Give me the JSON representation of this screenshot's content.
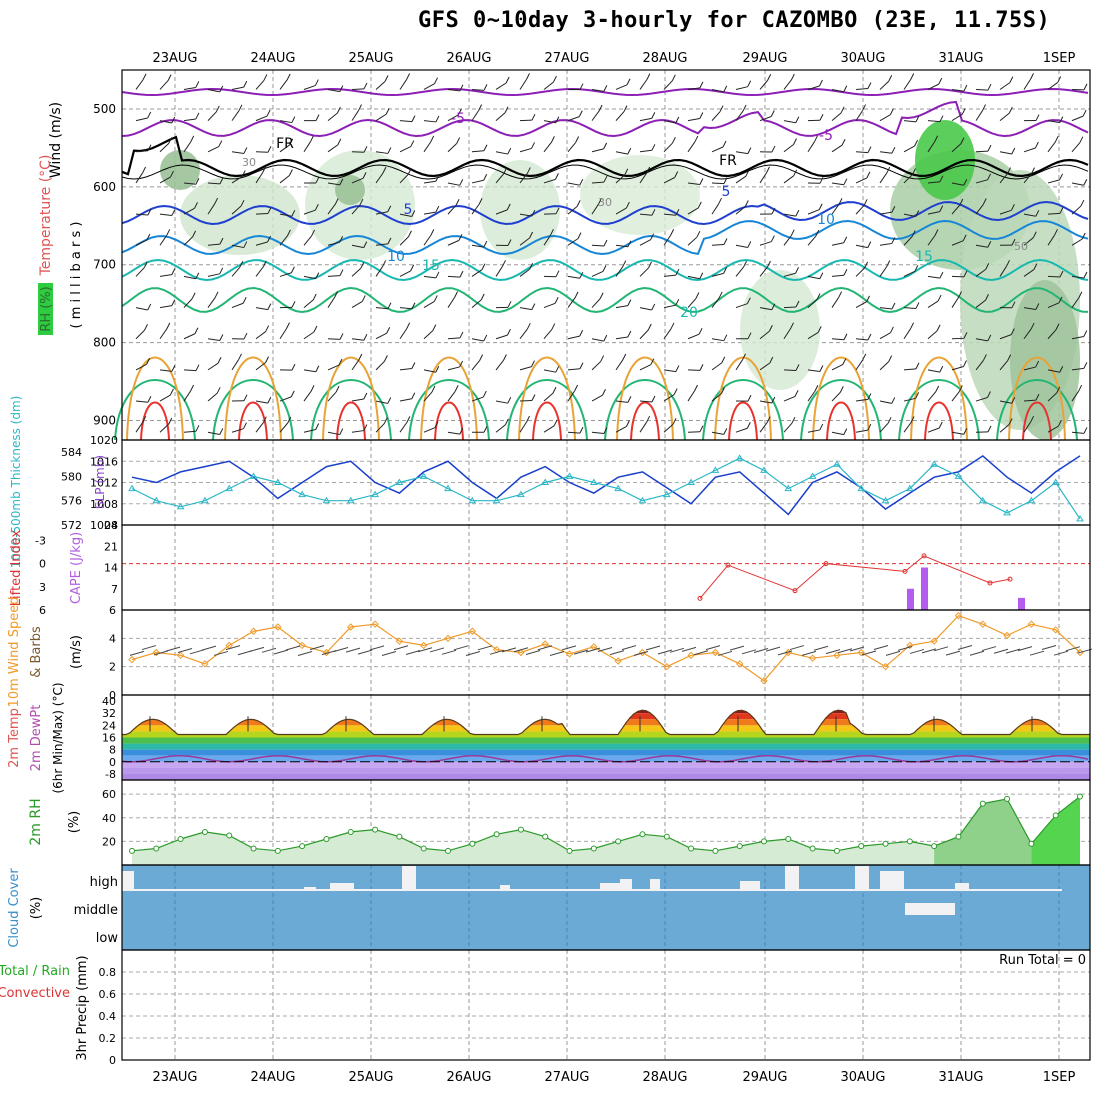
{
  "title": "GFS 0~10day 3-hourly for CAZOMBO (23E, 11.75S)",
  "colors": {
    "purple": "#8c1fb5",
    "black": "#000000",
    "blue1": "#1f3fcf",
    "blue2": "#1786d6",
    "teal": "#18b8b0",
    "green": "#22b573",
    "orange": "#e8a334",
    "red": "#e8322e",
    "rh_green": "#2ecc40",
    "cloud_blue": "#6aaad4",
    "slp_blue": "#1a3fcc",
    "thick_cyan": "#2bb7c8",
    "cape_purple": "#b45cf0",
    "li_red": "#e03030",
    "wind_orange": "#f09a28",
    "rh2m": "#2a9a2a"
  },
  "dates": [
    "23AUG",
    "24AUG",
    "25AUG",
    "26AUG",
    "27AUG",
    "28AUG",
    "29AUG",
    "30AUG",
    "31AUG",
    "1SEP"
  ],
  "panels": {
    "upper": {
      "labels": [
        "Wind (m/s)",
        "Temperature (°C)",
        "RH (%)",
        "( m i l l i b a r s )"
      ],
      "yticks": [
        "500",
        "600",
        "700",
        "800",
        "900"
      ],
      "contour_labels": [
        {
          "text": "-5",
          "series": "purple"
        },
        {
          "text": "-5",
          "series": "purple"
        },
        {
          "text": "FR",
          "series": "black"
        },
        {
          "text": "FR",
          "series": "black"
        },
        {
          "text": "5",
          "series": "blue1"
        },
        {
          "text": "5",
          "series": "blue1"
        },
        {
          "text": "10",
          "series": "blue2"
        },
        {
          "text": "10",
          "series": "blue2"
        },
        {
          "text": "15",
          "series": "teal"
        },
        {
          "text": "15",
          "series": "teal"
        },
        {
          "text": "20",
          "series": "teal"
        },
        {
          "text": "30",
          "series": "gray"
        },
        {
          "text": "30",
          "series": "gray"
        },
        {
          "text": "50",
          "series": "gray"
        }
      ]
    },
    "slp": {
      "labels": [
        "1000-500mb Thickness (dm)",
        "SLP (mb)"
      ],
      "left_ticks": [
        "584",
        "580",
        "576",
        "572"
      ],
      "right_ticks": [
        "1020",
        "1016",
        "1012",
        "1008",
        "1004"
      ]
    },
    "cape": {
      "labels": [
        "Lifted Index",
        "CAPE (J/kg)"
      ],
      "left_ticks": [
        "-3",
        "0",
        "3",
        "6"
      ],
      "right_ticks": [
        "28",
        "21",
        "14",
        "7"
      ]
    },
    "wind10": {
      "labels": [
        "10m Wind Speed",
        "& Barbs",
        "(m/s)"
      ],
      "yticks": [
        "6",
        "4",
        "2",
        "0"
      ]
    },
    "temp2m": {
      "labels": [
        "2m Temp",
        "2m DewPt",
        "(6hr Min/Max) (°C)"
      ],
      "yticks": [
        "40",
        "32",
        "24",
        "16",
        "8",
        "0",
        "-8"
      ]
    },
    "rh2m": {
      "labels": [
        "2m RH",
        "(%)"
      ],
      "yticks": [
        "60",
        "40",
        "20"
      ]
    },
    "cloud": {
      "labels": [
        "Cloud Cover",
        "(%)"
      ],
      "levels": [
        "high",
        "middle",
        "low"
      ]
    },
    "precip": {
      "labels": [
        "Total / Rain",
        "Convective",
        "3hr Precip (mm)"
      ],
      "yticks": [
        "0.8",
        "0.6",
        "0.4",
        "0.2",
        "0"
      ],
      "run_total": "Run Total = 0"
    }
  },
  "chart_data": [
    {
      "type": "line",
      "title": "SLP (mb)",
      "x": [
        "22AUG12",
        "22AUG18",
        "23AUG00",
        "23AUG06",
        "23AUG12",
        "23AUG18",
        "24AUG00",
        "24AUG06",
        "24AUG12",
        "24AUG18",
        "25AUG00",
        "25AUG06",
        "25AUG12",
        "25AUG18",
        "26AUG00",
        "26AUG06",
        "26AUG12",
        "26AUG18",
        "27AUG00",
        "27AUG06",
        "27AUG12",
        "27AUG18",
        "28AUG00",
        "28AUG06",
        "28AUG12",
        "28AUG18",
        "29AUG00",
        "29AUG06",
        "29AUG12",
        "29AUG18",
        "30AUG00",
        "30AUG06",
        "30AUG12",
        "30AUG18",
        "31AUG00",
        "31AUG06",
        "31AUG12",
        "31AUG18",
        "01SEP00",
        "01SEP06"
      ],
      "values": [
        1013,
        1012,
        1014,
        1015,
        1016,
        1013,
        1009,
        1012,
        1015,
        1016,
        1012,
        1010,
        1014,
        1016,
        1012,
        1009,
        1013,
        1015,
        1012,
        1010,
        1013,
        1014,
        1011,
        1008,
        1013,
        1014,
        1010,
        1006,
        1012,
        1014,
        1011,
        1007,
        1010,
        1013,
        1014,
        1017,
        1013,
        1010,
        1014,
        1017
      ],
      "ylim": [
        1004,
        1020
      ]
    },
    {
      "type": "line",
      "title": "1000-500mb Thickness (dm)",
      "values": [
        578,
        576,
        575,
        576,
        578,
        580,
        579,
        577,
        576,
        576,
        577,
        579,
        580,
        578,
        576,
        576,
        577,
        579,
        580,
        579,
        578,
        576,
        577,
        579,
        581,
        583,
        581,
        578,
        580,
        582,
        578,
        576,
        578,
        582,
        580,
        576,
        574,
        576,
        579,
        573
      ],
      "ylim": [
        572,
        586
      ]
    },
    {
      "type": "bar",
      "title": "CAPE (J/kg)",
      "categories": [
        "30AUG18",
        "30AUG21",
        "31AUG12"
      ],
      "values": [
        7,
        14,
        4
      ],
      "ylim": [
        0,
        28
      ]
    },
    {
      "type": "line",
      "title": "Lifted Index",
      "x": [
        "28AUG12",
        "28AUG15",
        "29AUG12",
        "29AUG15",
        "30AUG15",
        "30AUG18",
        "31AUG09",
        "31AUG12"
      ],
      "values": [
        4.5,
        0.2,
        3.5,
        0.0,
        1.0,
        -1.0,
        2.5,
        2.0
      ],
      "ylim": [
        6,
        -5
      ]
    },
    {
      "type": "line",
      "title": "10m Wind Speed (m/s)",
      "values": [
        2.5,
        3.0,
        2.8,
        2.2,
        3.5,
        4.5,
        4.8,
        3.5,
        3.0,
        4.8,
        5.0,
        3.8,
        3.5,
        4.0,
        4.5,
        3.2,
        3.0,
        3.6,
        2.9,
        3.4,
        2.4,
        3.0,
        2.0,
        2.8,
        3.0,
        2.2,
        1.0,
        3.0,
        2.6,
        2.8,
        3.0,
        2.0,
        3.5,
        3.8,
        5.6,
        5.0,
        4.2,
        5.0,
        4.6,
        3.0
      ],
      "ylim": [
        0,
        6
      ]
    },
    {
      "type": "line",
      "title": "2m RH (%)",
      "values": [
        12,
        14,
        22,
        28,
        25,
        14,
        12,
        16,
        22,
        28,
        30,
        24,
        14,
        12,
        18,
        26,
        30,
        24,
        12,
        14,
        20,
        26,
        24,
        14,
        12,
        16,
        20,
        22,
        14,
        12,
        16,
        18,
        20,
        16,
        24,
        52,
        56,
        18,
        42,
        58
      ],
      "ylim": [
        0,
        72
      ]
    }
  ]
}
